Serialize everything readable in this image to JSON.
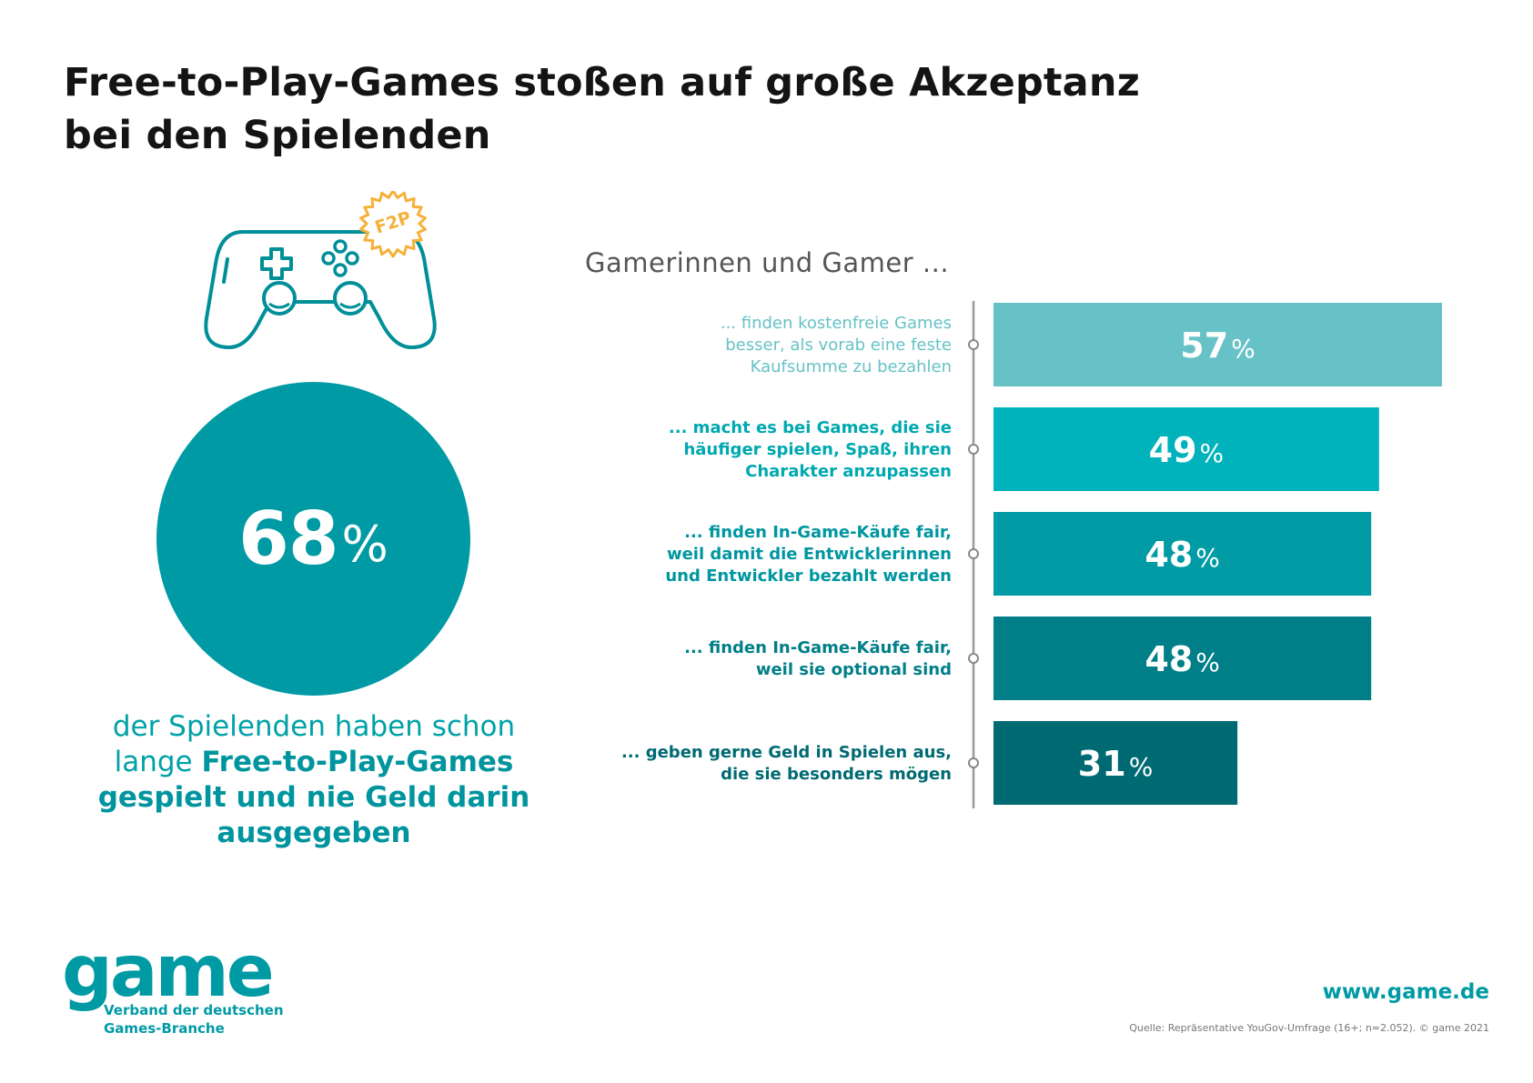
{
  "title_line1": "Free-to-Play-Games stoßen auf große Akzeptanz",
  "title_line2": "bei den Spielenden",
  "badge_text": "F2P",
  "highlight": {
    "value": "68",
    "unit": "%",
    "caption_plain": "der Spielenden haben schon lange ",
    "caption_bold": "Free-to-Play-Games gespielt und nie Geld darin ausgegeben"
  },
  "chart_data": {
    "type": "bar",
    "orientation": "horizontal",
    "title": "Gamerinnen und Gamer ...",
    "xlim": [
      0,
      100
    ],
    "unit": "%",
    "categories": [
      [
        "... finden kostenfreie Games",
        "besser, als vorab eine feste",
        "Kaufsumme zu bezahlen"
      ],
      [
        "... macht es bei Games, die sie",
        "häufiger spielen, Spaß, ihren",
        "Charakter anzupassen"
      ],
      [
        "... finden In-Game-Käufe fair,",
        "weil damit die Entwicklerinnen",
        "und Entwickler bezahlt werden"
      ],
      [
        "... finden In-Game-Käufe fair,",
        "weil sie optional sind"
      ],
      [
        "... geben gerne Geld in Spielen aus,",
        "die sie besonders mögen"
      ]
    ],
    "values": [
      57,
      49,
      48,
      48,
      31
    ],
    "bar_colors": [
      "#66c2c6",
      "#00b2bb",
      "#009ba5",
      "#007f88",
      "#006a73"
    ],
    "label_colors": [
      "#66c2c6",
      "#00a8b0",
      "#0096a0",
      "#007f88",
      "#006a73"
    ]
  },
  "footer": {
    "logo": "game",
    "logo_sub_line1": "Verband der deutschen",
    "logo_sub_line2": "Games-Branche",
    "url": "www.game.de",
    "source": "Quelle: Repräsentative YouGov-Umfrage (16+; n=2.052). © game 2021"
  }
}
